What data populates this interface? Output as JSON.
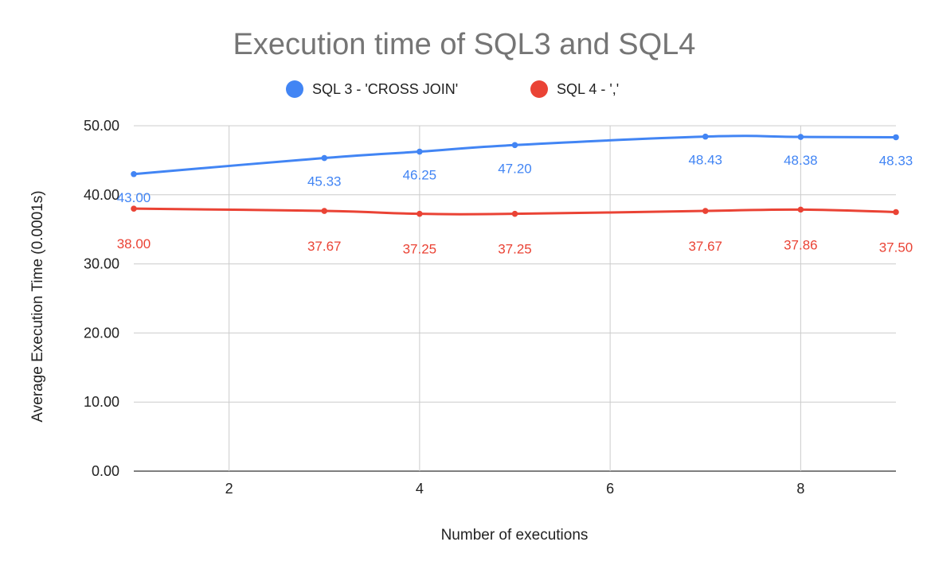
{
  "chart_data": {
    "type": "line",
    "title": "Execution time of SQL3 and SQL4",
    "xlabel": "Number of executions",
    "ylabel": "Average Execution Time (0.0001s)",
    "xlim": [
      1,
      9
    ],
    "ylim": [
      0,
      50
    ],
    "x_ticks": [
      "2",
      "4",
      "6",
      "8"
    ],
    "x_tick_values": [
      2,
      4,
      6,
      8
    ],
    "y_ticks": [
      "0.00",
      "10.00",
      "20.00",
      "30.00",
      "40.00",
      "50.00"
    ],
    "y_tick_values": [
      0,
      10,
      20,
      30,
      40,
      50
    ],
    "grid": true,
    "legend_position": "top",
    "series": [
      {
        "name": "SQL 3 - 'CROSS JOIN'",
        "color": "#4285f4",
        "x": [
          1,
          3,
          4,
          5,
          7,
          8,
          9
        ],
        "values": [
          43.0,
          45.33,
          46.25,
          47.2,
          48.43,
          48.38,
          48.33
        ],
        "labels": [
          "43.00",
          "45.33",
          "46.25",
          "47.20",
          "48.43",
          "48.38",
          "48.33"
        ]
      },
      {
        "name": "SQL 4 - ','",
        "color": "#ea4335",
        "x": [
          1,
          3,
          4,
          5,
          7,
          8,
          9
        ],
        "values": [
          38.0,
          37.67,
          37.25,
          37.25,
          37.67,
          37.86,
          37.5
        ],
        "labels": [
          "38.00",
          "37.67",
          "37.25",
          "37.25",
          "37.67",
          "37.86",
          "37.50"
        ]
      }
    ]
  }
}
